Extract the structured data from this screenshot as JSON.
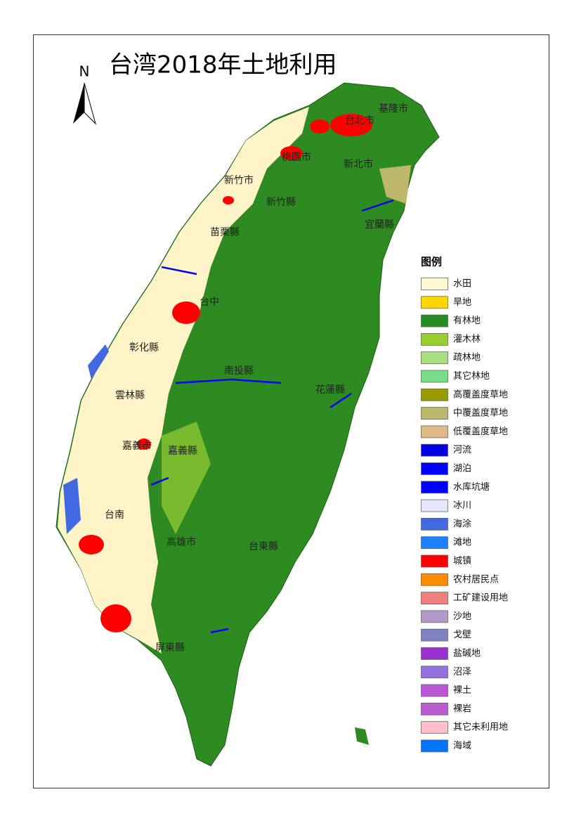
{
  "title": "台湾2018年土地利用",
  "north": "N",
  "places": [
    {
      "label": "基隆市"
    },
    {
      "label": "台北市"
    },
    {
      "label": "桃園市"
    },
    {
      "label": "新北市"
    },
    {
      "label": "新竹市"
    },
    {
      "label": "新竹縣"
    },
    {
      "label": "宜蘭縣"
    },
    {
      "label": "苗栗縣"
    },
    {
      "label": "台中"
    },
    {
      "label": "彰化縣"
    },
    {
      "label": "南投縣"
    },
    {
      "label": "花蓮縣"
    },
    {
      "label": "雲林縣"
    },
    {
      "label": "嘉義市"
    },
    {
      "label": "嘉義縣"
    },
    {
      "label": "台南"
    },
    {
      "label": "高雄市"
    },
    {
      "label": "台東縣"
    },
    {
      "label": "屏東縣"
    }
  ],
  "legend": {
    "title": "图例",
    "items": [
      {
        "label": "水田",
        "color": "#fff8d0"
      },
      {
        "label": "旱地",
        "color": "#ffd700"
      },
      {
        "label": "有林地",
        "color": "#228b22"
      },
      {
        "label": "灌木林",
        "color": "#9acd32"
      },
      {
        "label": "疏林地",
        "color": "#a8e080"
      },
      {
        "label": "其它林地",
        "color": "#77dd88"
      },
      {
        "label": "高覆盖度草地",
        "color": "#999900"
      },
      {
        "label": "中覆盖度草地",
        "color": "#bdb76b"
      },
      {
        "label": "低覆盖度草地",
        "color": "#deb887"
      },
      {
        "label": "河流",
        "color": "#0000e0"
      },
      {
        "label": "湖泊",
        "color": "#0000ff"
      },
      {
        "label": "水库坑塘",
        "color": "#0000ff"
      },
      {
        "label": "冰川",
        "color": "#e6e6fa"
      },
      {
        "label": "海涂",
        "color": "#4169e1"
      },
      {
        "label": "滩地",
        "color": "#1e7fff"
      },
      {
        "label": "城镇",
        "color": "#ff0000"
      },
      {
        "label": "农村居民点",
        "color": "#ff8c00"
      },
      {
        "label": "工矿建设用地",
        "color": "#f08080"
      },
      {
        "label": "沙地",
        "color": "#b399c8"
      },
      {
        "label": "戈壁",
        "color": "#8080c0"
      },
      {
        "label": "盐碱地",
        "color": "#9932cc"
      },
      {
        "label": "沼泽",
        "color": "#9370db"
      },
      {
        "label": "裸土",
        "color": "#ba55d3"
      },
      {
        "label": "裸岩",
        "color": "#b85cd0"
      },
      {
        "label": "其它未利用地",
        "color": "#ffc0cb"
      },
      {
        "label": "海域",
        "color": "#0073ff"
      }
    ]
  }
}
